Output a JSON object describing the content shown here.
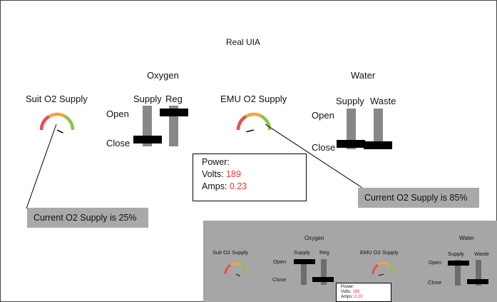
{
  "title": "Real UIA",
  "oxygen": {
    "heading": "Oxygen",
    "supply_label": "Supply",
    "reg_label": "Reg"
  },
  "water": {
    "heading": "Water",
    "supply_label": "Supply",
    "waste_label": "Waste"
  },
  "open_label": "Open",
  "close_label": "Close",
  "suit_o2": {
    "label": "Suit O2 Supply",
    "level_fraction": 0.25,
    "callout": "Current O2 Supply is 25%"
  },
  "emu_o2": {
    "label": "EMU O2 Supply",
    "level_fraction": 0.85,
    "callout": "Current O2 Supply is 85%"
  },
  "power": {
    "heading": "Power:",
    "volts_label": "Volts:",
    "volts_value": "189",
    "amps_label": "Amps:",
    "amps_value": "0.23"
  },
  "valve_states": {
    "oxygen_supply": "close",
    "oxygen_reg": "open",
    "water_supply": "close",
    "water_waste": "close"
  },
  "colors": {
    "gauge_red": "#ef4b4b",
    "gauge_orange": "#f3a63a",
    "gauge_green": "#8bc34a",
    "value_red": "#e53935",
    "callout_bg": "#a9a9a9",
    "panel_bg": "#a6a6a6"
  }
}
